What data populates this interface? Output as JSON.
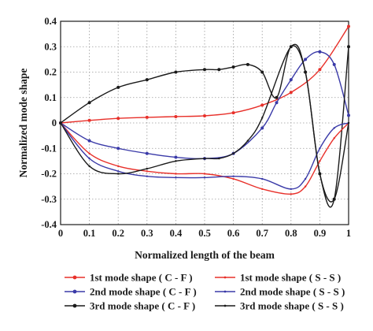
{
  "chart_data": {
    "type": "line",
    "xlabel": "Normalized length of the beam",
    "ylabel": "Normalized mode shape",
    "xlim": [
      0,
      1
    ],
    "ylim": [
      -0.4,
      0.4
    ],
    "xticks": [
      "0",
      "0.1",
      "0.2",
      "0.3",
      "0.4",
      "0.5",
      "0.6",
      "0.7",
      "0.8",
      "0.9",
      "1"
    ],
    "yticks": [
      "0.4",
      "0.3",
      "0.2",
      "0.1",
      "0",
      "-0.1",
      "-0.2",
      "-0.3",
      "-0.4"
    ],
    "grid": true,
    "legend_position": "bottom, two columns",
    "series": [
      {
        "name": "1st mode shape ( C - F )",
        "color": "#e8302a",
        "marker": "circle",
        "x": [
          0,
          0.1,
          0.2,
          0.3,
          0.4,
          0.5,
          0.6,
          0.7,
          0.8,
          0.9,
          1.0
        ],
        "y": [
          0,
          0.01,
          0.018,
          0.022,
          0.025,
          0.028,
          0.04,
          0.07,
          0.12,
          0.21,
          0.38
        ]
      },
      {
        "name": "2nd mode shape ( C - F )",
        "color": "#3a3aa8",
        "marker": "circle",
        "x": [
          0,
          0.1,
          0.2,
          0.3,
          0.4,
          0.5,
          0.6,
          0.7,
          0.75,
          0.8,
          0.85,
          0.9,
          0.95,
          1.0
        ],
        "y": [
          0,
          -0.07,
          -0.1,
          -0.12,
          -0.135,
          -0.14,
          -0.12,
          -0.02,
          0.08,
          0.17,
          0.25,
          0.28,
          0.23,
          0.03
        ]
      },
      {
        "name": "3rd mode shape ( C - F )",
        "color": "#1a1a1a",
        "marker": "circle",
        "x": [
          0,
          0.1,
          0.2,
          0.3,
          0.4,
          0.5,
          0.55,
          0.6,
          0.65,
          0.7,
          0.75,
          0.8,
          0.85,
          0.9,
          0.95,
          1.0
        ],
        "y": [
          0,
          0.08,
          0.14,
          0.17,
          0.2,
          0.21,
          0.21,
          0.22,
          0.23,
          0.2,
          0.1,
          0.3,
          0.2,
          -0.2,
          -0.3,
          0.3
        ]
      },
      {
        "name": "1st mode shape ( S - S )",
        "color": "#e8302a",
        "marker": "none",
        "x": [
          0,
          0.1,
          0.2,
          0.3,
          0.4,
          0.5,
          0.6,
          0.7,
          0.8,
          0.85,
          0.9,
          0.95,
          1.0
        ],
        "y": [
          0,
          -0.12,
          -0.17,
          -0.19,
          -0.2,
          -0.2,
          -0.22,
          -0.26,
          -0.28,
          -0.25,
          -0.15,
          -0.06,
          0
        ]
      },
      {
        "name": "2nd mode shape ( S - S )",
        "color": "#3a3aa8",
        "marker": "none",
        "x": [
          0,
          0.1,
          0.2,
          0.3,
          0.4,
          0.5,
          0.6,
          0.7,
          0.8,
          0.85,
          0.9,
          0.95,
          1.0
        ],
        "y": [
          0,
          -0.14,
          -0.19,
          -0.21,
          -0.215,
          -0.215,
          -0.21,
          -0.22,
          -0.26,
          -0.22,
          -0.1,
          -0.02,
          0
        ]
      },
      {
        "name": "3rd mode shape ( S - S )",
        "color": "#1a1a1a",
        "marker": "none",
        "x": [
          0,
          0.1,
          0.2,
          0.3,
          0.4,
          0.5,
          0.55,
          0.6,
          0.65,
          0.7,
          0.8,
          0.85,
          0.9,
          0.95,
          1.0
        ],
        "y": [
          0,
          -0.17,
          -0.2,
          -0.18,
          -0.15,
          -0.14,
          -0.14,
          -0.12,
          -0.07,
          0.02,
          0.3,
          0.2,
          -0.2,
          -0.3,
          0
        ]
      }
    ]
  }
}
